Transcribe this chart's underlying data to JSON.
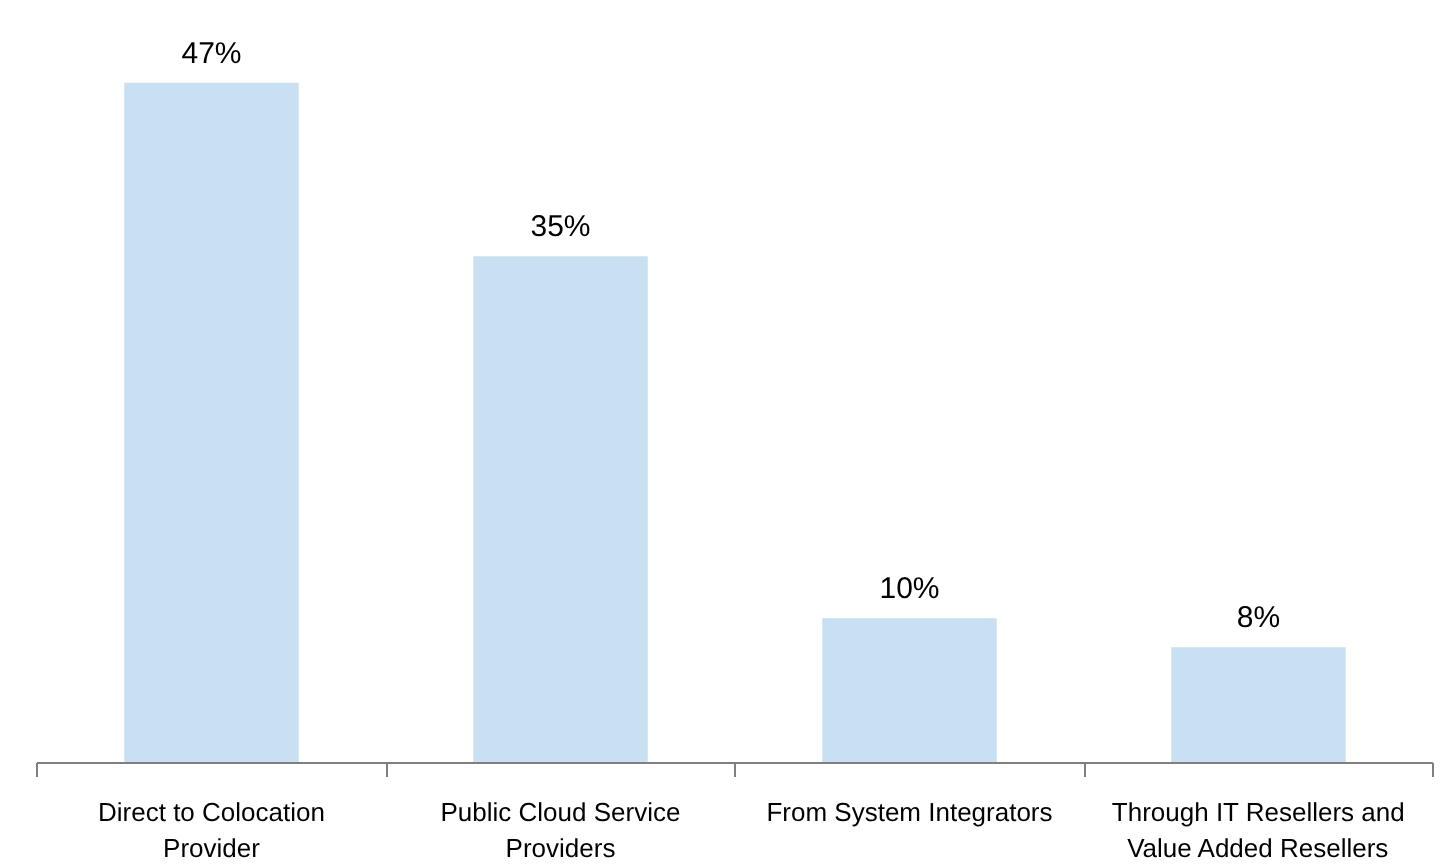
{
  "chart_data": {
    "type": "bar",
    "categories": [
      "Direct to Colocation Provider",
      "Public Cloud Service Providers",
      "From System Integrators",
      "Through IT Resellers and Value Added Resellers"
    ],
    "values": [
      47,
      35,
      10,
      8
    ],
    "value_labels": [
      "47%",
      "35%",
      "10%",
      "8%"
    ],
    "color": "#c9dff2",
    "grid": false
  }
}
